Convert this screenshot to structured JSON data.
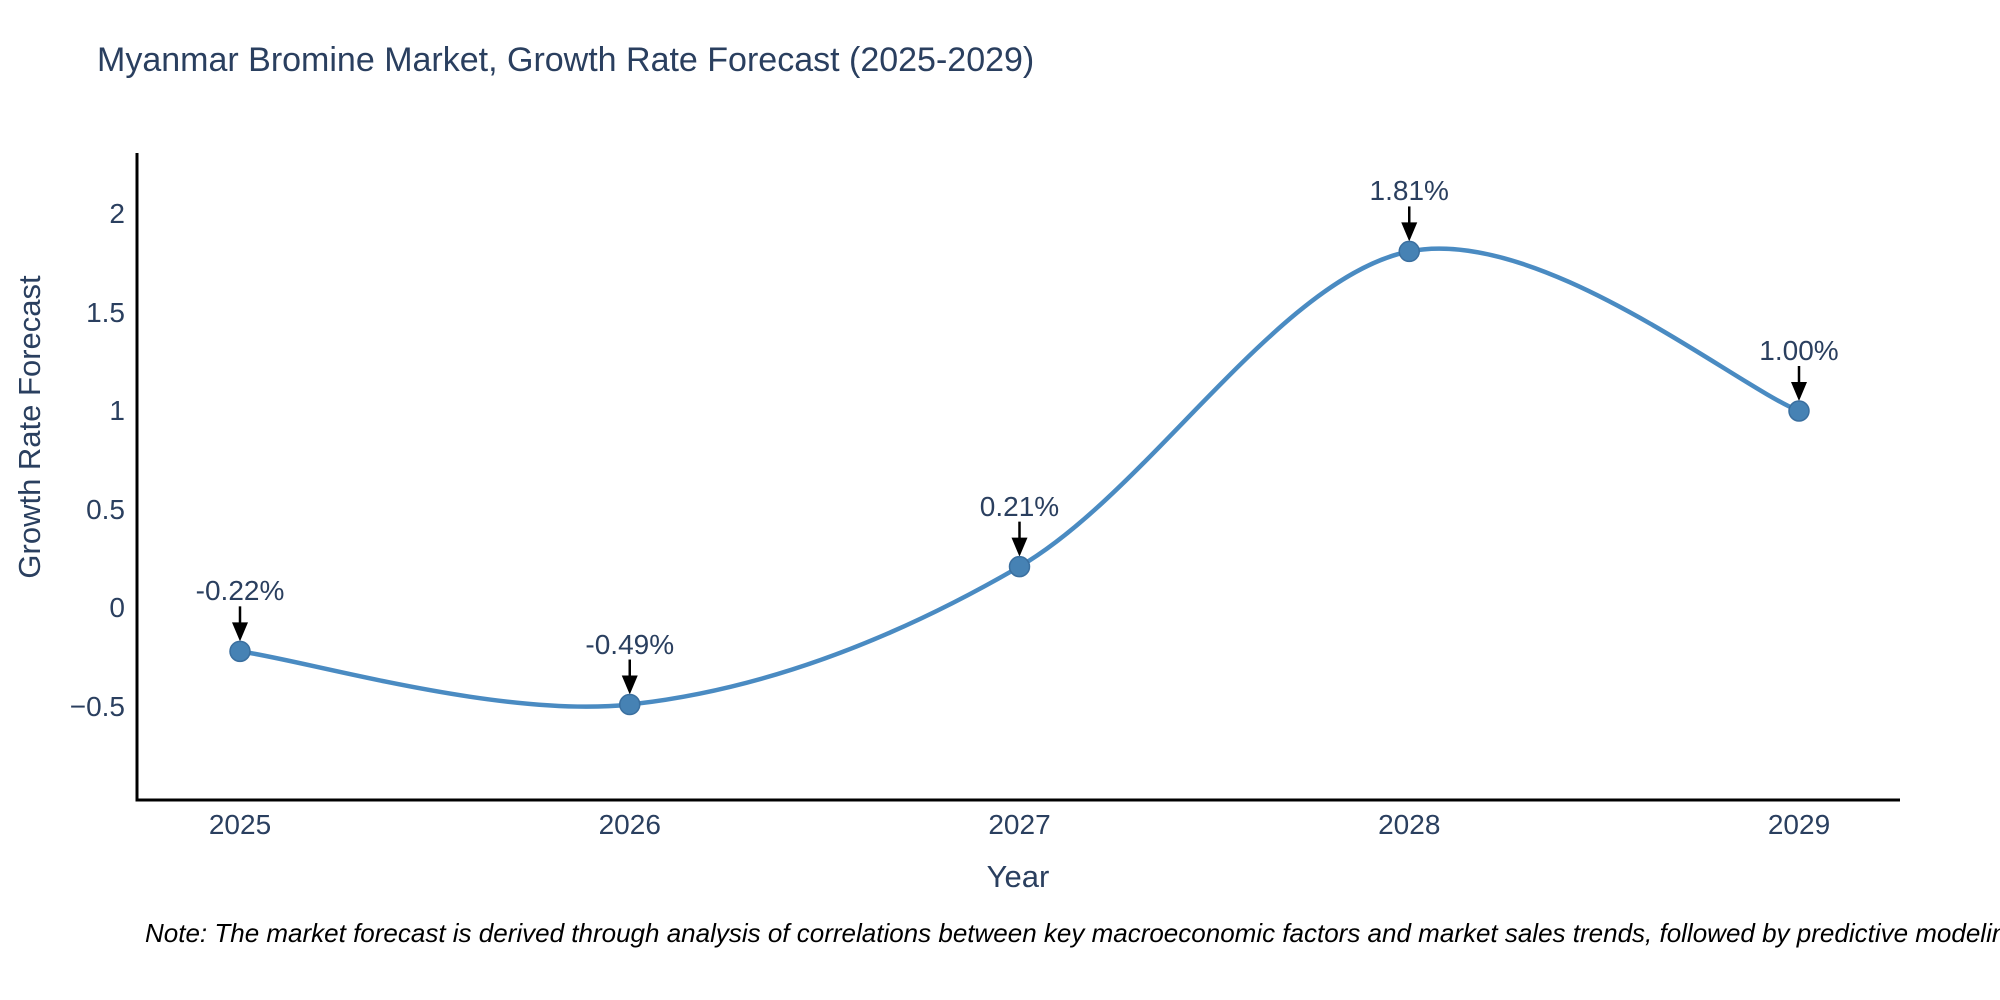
{
  "chart_data": {
    "type": "line",
    "line_shape": "spline",
    "title": "Myanmar Bromine Market, Growth Rate Forecast (2025-2029)",
    "xlabel": "Year",
    "ylabel": "Growth Rate Forecast",
    "categories": [
      "2025",
      "2026",
      "2027",
      "2028",
      "2029"
    ],
    "values": [
      -0.22,
      -0.49,
      0.21,
      1.81,
      1.0
    ],
    "point_labels": [
      "-0.22%",
      "-0.49%",
      "0.21%",
      "1.81%",
      "1.00%"
    ],
    "ytick_values": [
      2,
      1.5,
      1,
      0.5,
      0,
      -0.5
    ],
    "ytick_labels": [
      "2",
      "1.5",
      "1",
      "0.5",
      "0",
      "−0.5"
    ],
    "ylim": [
      -0.97,
      2.31
    ],
    "grid": false,
    "legend": false,
    "annotations_have_arrows": true,
    "colors": {
      "line": "#4a8bc2",
      "marker_fill": "#4682b4",
      "marker_stroke": "#3a6f9f",
      "axis_line": "#000000",
      "text": "#2a3f5f",
      "arrow": "#000000",
      "note": "#000000",
      "background": "#ffffff"
    }
  },
  "note": {
    "text": "Note: The market forecast is derived through analysis of correlations between key macroeconomic factors and market sales trends, followed by predictive modeling to project future sa"
  }
}
